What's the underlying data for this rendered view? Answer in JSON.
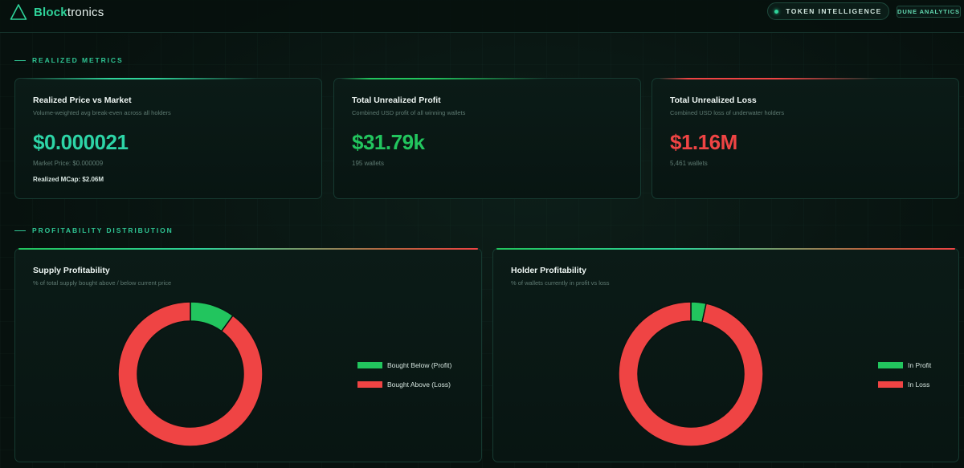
{
  "header": {
    "brand_bold": "Block",
    "brand_light": "tronics",
    "token_pill": "TOKEN INTELLIGENCE",
    "dune_link": "DUNE ANALYTICS"
  },
  "colors": {
    "accent": "#2fd39a",
    "profit": "#22c55e",
    "loss": "#ef4444"
  },
  "sections": {
    "realized": "REALIZED METRICS",
    "profitability": "PROFITABILITY DISTRIBUTION"
  },
  "cards": [
    {
      "title": "Realized Price vs Market",
      "subtitle": "Volume-weighted avg break-even across all holders",
      "value": "$0.000021",
      "meta": "Market Price: $0.000009",
      "meta2": "Realized MCap: $2.06M"
    },
    {
      "title": "Total Unrealized Profit",
      "subtitle": "Combined USD profit of all winning wallets",
      "value": "$31.79k",
      "meta": "195 wallets"
    },
    {
      "title": "Total Unrealized Loss",
      "subtitle": "Combined USD loss of underwater holders",
      "value": "$1.16M",
      "meta": "5,461 wallets"
    }
  ],
  "chart_data": [
    {
      "type": "pie",
      "title": "Supply Profitability",
      "subtitle": "% of total supply bought above / below current price",
      "categories": [
        "Bought Below (Profit)",
        "Bought Above (Loss)"
      ],
      "values": [
        10,
        90
      ],
      "colors": [
        "#22c55e",
        "#ef4444"
      ],
      "legend": "right"
    },
    {
      "type": "pie",
      "title": "Holder Profitability",
      "subtitle": "% of wallets currently in profit vs loss",
      "categories": [
        "In Profit",
        "In Loss"
      ],
      "values": [
        3.4,
        96.6
      ],
      "colors": [
        "#22c55e",
        "#ef4444"
      ],
      "legend": "right"
    }
  ]
}
